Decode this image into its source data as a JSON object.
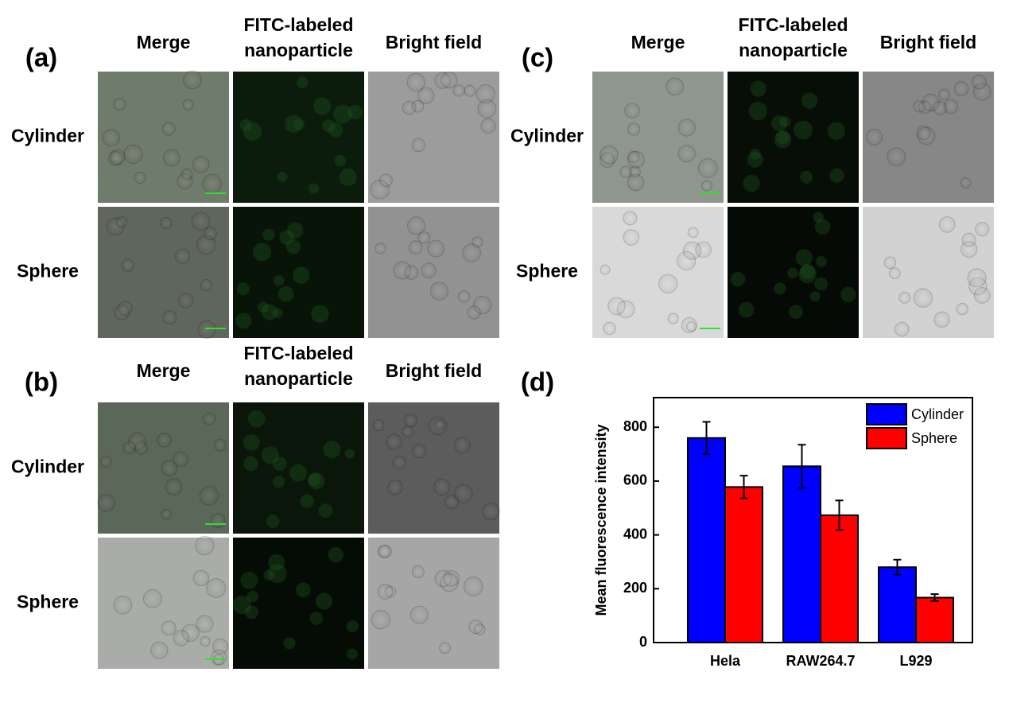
{
  "panels": [
    {
      "label": "(a)",
      "columns": [
        [
          "Merge"
        ],
        [
          "FITC-labeled",
          "nanoparticle"
        ],
        [
          "Bright field"
        ]
      ],
      "rows": [
        "Cylinder",
        "Sphere"
      ]
    },
    {
      "label": "(b)",
      "columns": [
        [
          "Merge"
        ],
        [
          "FITC-labeled",
          "nanoparticle"
        ],
        [
          "Bright field"
        ]
      ],
      "rows": [
        "Cylinder",
        "Sphere"
      ]
    },
    {
      "label": "(c)",
      "columns": [
        [
          "Merge"
        ],
        [
          "FITC-labeled",
          "nanoparticle"
        ],
        [
          "Bright field"
        ]
      ],
      "rows": [
        "Cylinder",
        "Sphere"
      ]
    }
  ],
  "chart_label": "(d)",
  "chart_data": {
    "type": "bar",
    "ylabel": "Mean fluorescence intensity",
    "categories": [
      "Hela",
      "RAW264.7",
      "L929"
    ],
    "series": [
      {
        "name": "Cylinder",
        "color": "#0000ff",
        "values": [
          760,
          655,
          280
        ],
        "errors": [
          60,
          80,
          28
        ]
      },
      {
        "name": "Sphere",
        "color": "#ff0000",
        "values": [
          578,
          473,
          167
        ],
        "errors": [
          42,
          55,
          13
        ]
      }
    ],
    "ylim": [
      0,
      910
    ],
    "yticks": [
      0,
      200,
      400,
      600,
      800
    ],
    "legend": "upper right"
  }
}
